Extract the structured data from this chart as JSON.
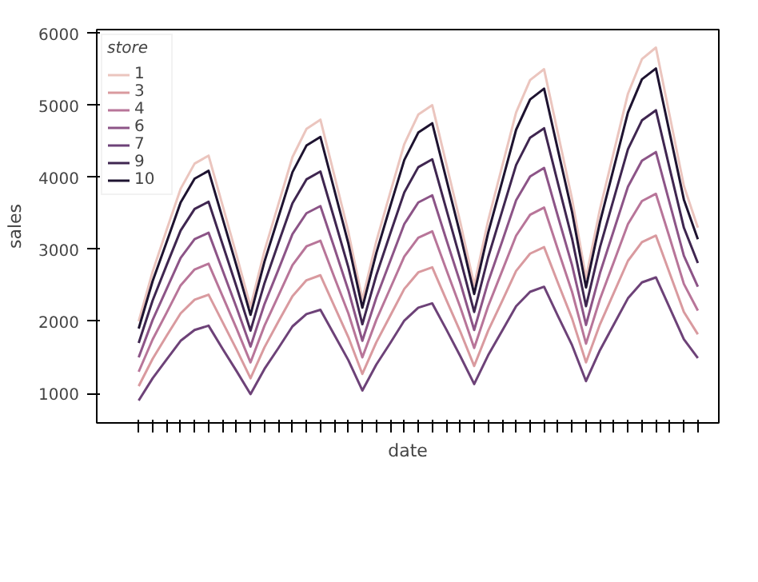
{
  "chart_data": {
    "type": "line",
    "xlabel": "date",
    "ylabel": "sales",
    "legend_title": "store",
    "legend": "top left",
    "grid": false,
    "marker": "none",
    "line_style": "solid",
    "categories": [
      null,
      null,
      null,
      null,
      null,
      null,
      null,
      null,
      null,
      null,
      null,
      null,
      null,
      null,
      null,
      null,
      null,
      null,
      null,
      null,
      null,
      null,
      null,
      null,
      null,
      null,
      null,
      null,
      null,
      null,
      null,
      null,
      null,
      null,
      null,
      null,
      null,
      null,
      null,
      null,
      null
    ],
    "ylim": [
      590,
      6050
    ],
    "yticks": [
      1000,
      2000,
      3000,
      4000,
      5000,
      6000
    ],
    "series": [
      {
        "name": "1",
        "color": "#ebc5be",
        "values": [
          2000,
          2690,
          3270,
          3840,
          4190,
          4300,
          3610,
          2920,
          2200,
          2980,
          3630,
          4280,
          4670,
          4800,
          4020,
          3240,
          2300,
          3110,
          3790,
          4460,
          4870,
          5000,
          4190,
          3380,
          2500,
          3400,
          4150,
          4900,
          5350,
          5500,
          4600,
          3700,
          2600,
          3560,
          4360,
          5160,
          5640,
          5800,
          4840,
          3880,
          3300
        ]
      },
      {
        "name": "3",
        "color": "#d99a9f",
        "values": [
          1100,
          1480,
          1800,
          2110,
          2300,
          2370,
          1990,
          1610,
          1210,
          1640,
          2000,
          2350,
          2570,
          2640,
          2210,
          1780,
          1270,
          1710,
          2080,
          2450,
          2680,
          2750,
          2300,
          1860,
          1380,
          1870,
          2280,
          2700,
          2940,
          3030,
          2530,
          2040,
          1430,
          1960,
          2400,
          2840,
          3100,
          3190,
          2660,
          2130,
          1820
        ]
      },
      {
        "name": "4",
        "color": "#b87599",
        "values": [
          1300,
          1750,
          2120,
          2500,
          2720,
          2800,
          2350,
          1900,
          1430,
          1940,
          2360,
          2780,
          3040,
          3120,
          2610,
          2110,
          1500,
          2020,
          2460,
          2900,
          3160,
          3250,
          2720,
          2200,
          1630,
          2210,
          2700,
          3190,
          3480,
          3580,
          2990,
          2410,
          1690,
          2310,
          2830,
          3350,
          3670,
          3770,
          3150,
          2520,
          2150
        ]
      },
      {
        "name": "6",
        "color": "#8c5487",
        "values": [
          1500,
          2020,
          2450,
          2880,
          3140,
          3230,
          2710,
          2190,
          1650,
          2240,
          2720,
          3210,
          3500,
          3600,
          3020,
          2430,
          1730,
          2330,
          2840,
          3350,
          3650,
          3750,
          3140,
          2540,
          1880,
          2550,
          3110,
          3680,
          4010,
          4130,
          3450,
          2780,
          1950,
          2670,
          3270,
          3870,
          4230,
          4350,
          3630,
          2910,
          2480
        ]
      },
      {
        "name": "7",
        "color": "#6d4278",
        "values": [
          900,
          1210,
          1470,
          1730,
          1880,
          1940,
          1620,
          1310,
          990,
          1340,
          1630,
          1930,
          2100,
          2160,
          1810,
          1460,
          1040,
          1400,
          1700,
          2010,
          2190,
          2250,
          1890,
          1520,
          1130,
          1530,
          1870,
          2210,
          2410,
          2480,
          2070,
          1670,
          1170,
          1600,
          1960,
          2320,
          2540,
          2610,
          2180,
          1750,
          1490
        ]
      },
      {
        "name": "9",
        "color": "#3f2650",
        "values": [
          1700,
          2290,
          2780,
          3260,
          3560,
          3660,
          3070,
          2480,
          1870,
          2530,
          3090,
          3640,
          3970,
          4080,
          3420,
          2750,
          1960,
          2640,
          3220,
          3790,
          4140,
          4250,
          3560,
          2870,
          2130,
          2890,
          3530,
          4170,
          4550,
          4680,
          3910,
          3150,
          2210,
          3030,
          3710,
          4390,
          4790,
          4930,
          4110,
          3300,
          2810
        ]
      },
      {
        "name": "10",
        "color": "#1e1330",
        "values": [
          1900,
          2560,
          3100,
          3650,
          3980,
          4090,
          3430,
          2770,
          2090,
          2830,
          3450,
          4070,
          4440,
          4560,
          3820,
          3080,
          2190,
          2950,
          3600,
          4240,
          4620,
          4750,
          3980,
          3210,
          2380,
          3230,
          3940,
          4660,
          5080,
          5230,
          4370,
          3520,
          2470,
          3380,
          4140,
          4900,
          5360,
          5510,
          4600,
          3690,
          3140
        ]
      }
    ]
  }
}
